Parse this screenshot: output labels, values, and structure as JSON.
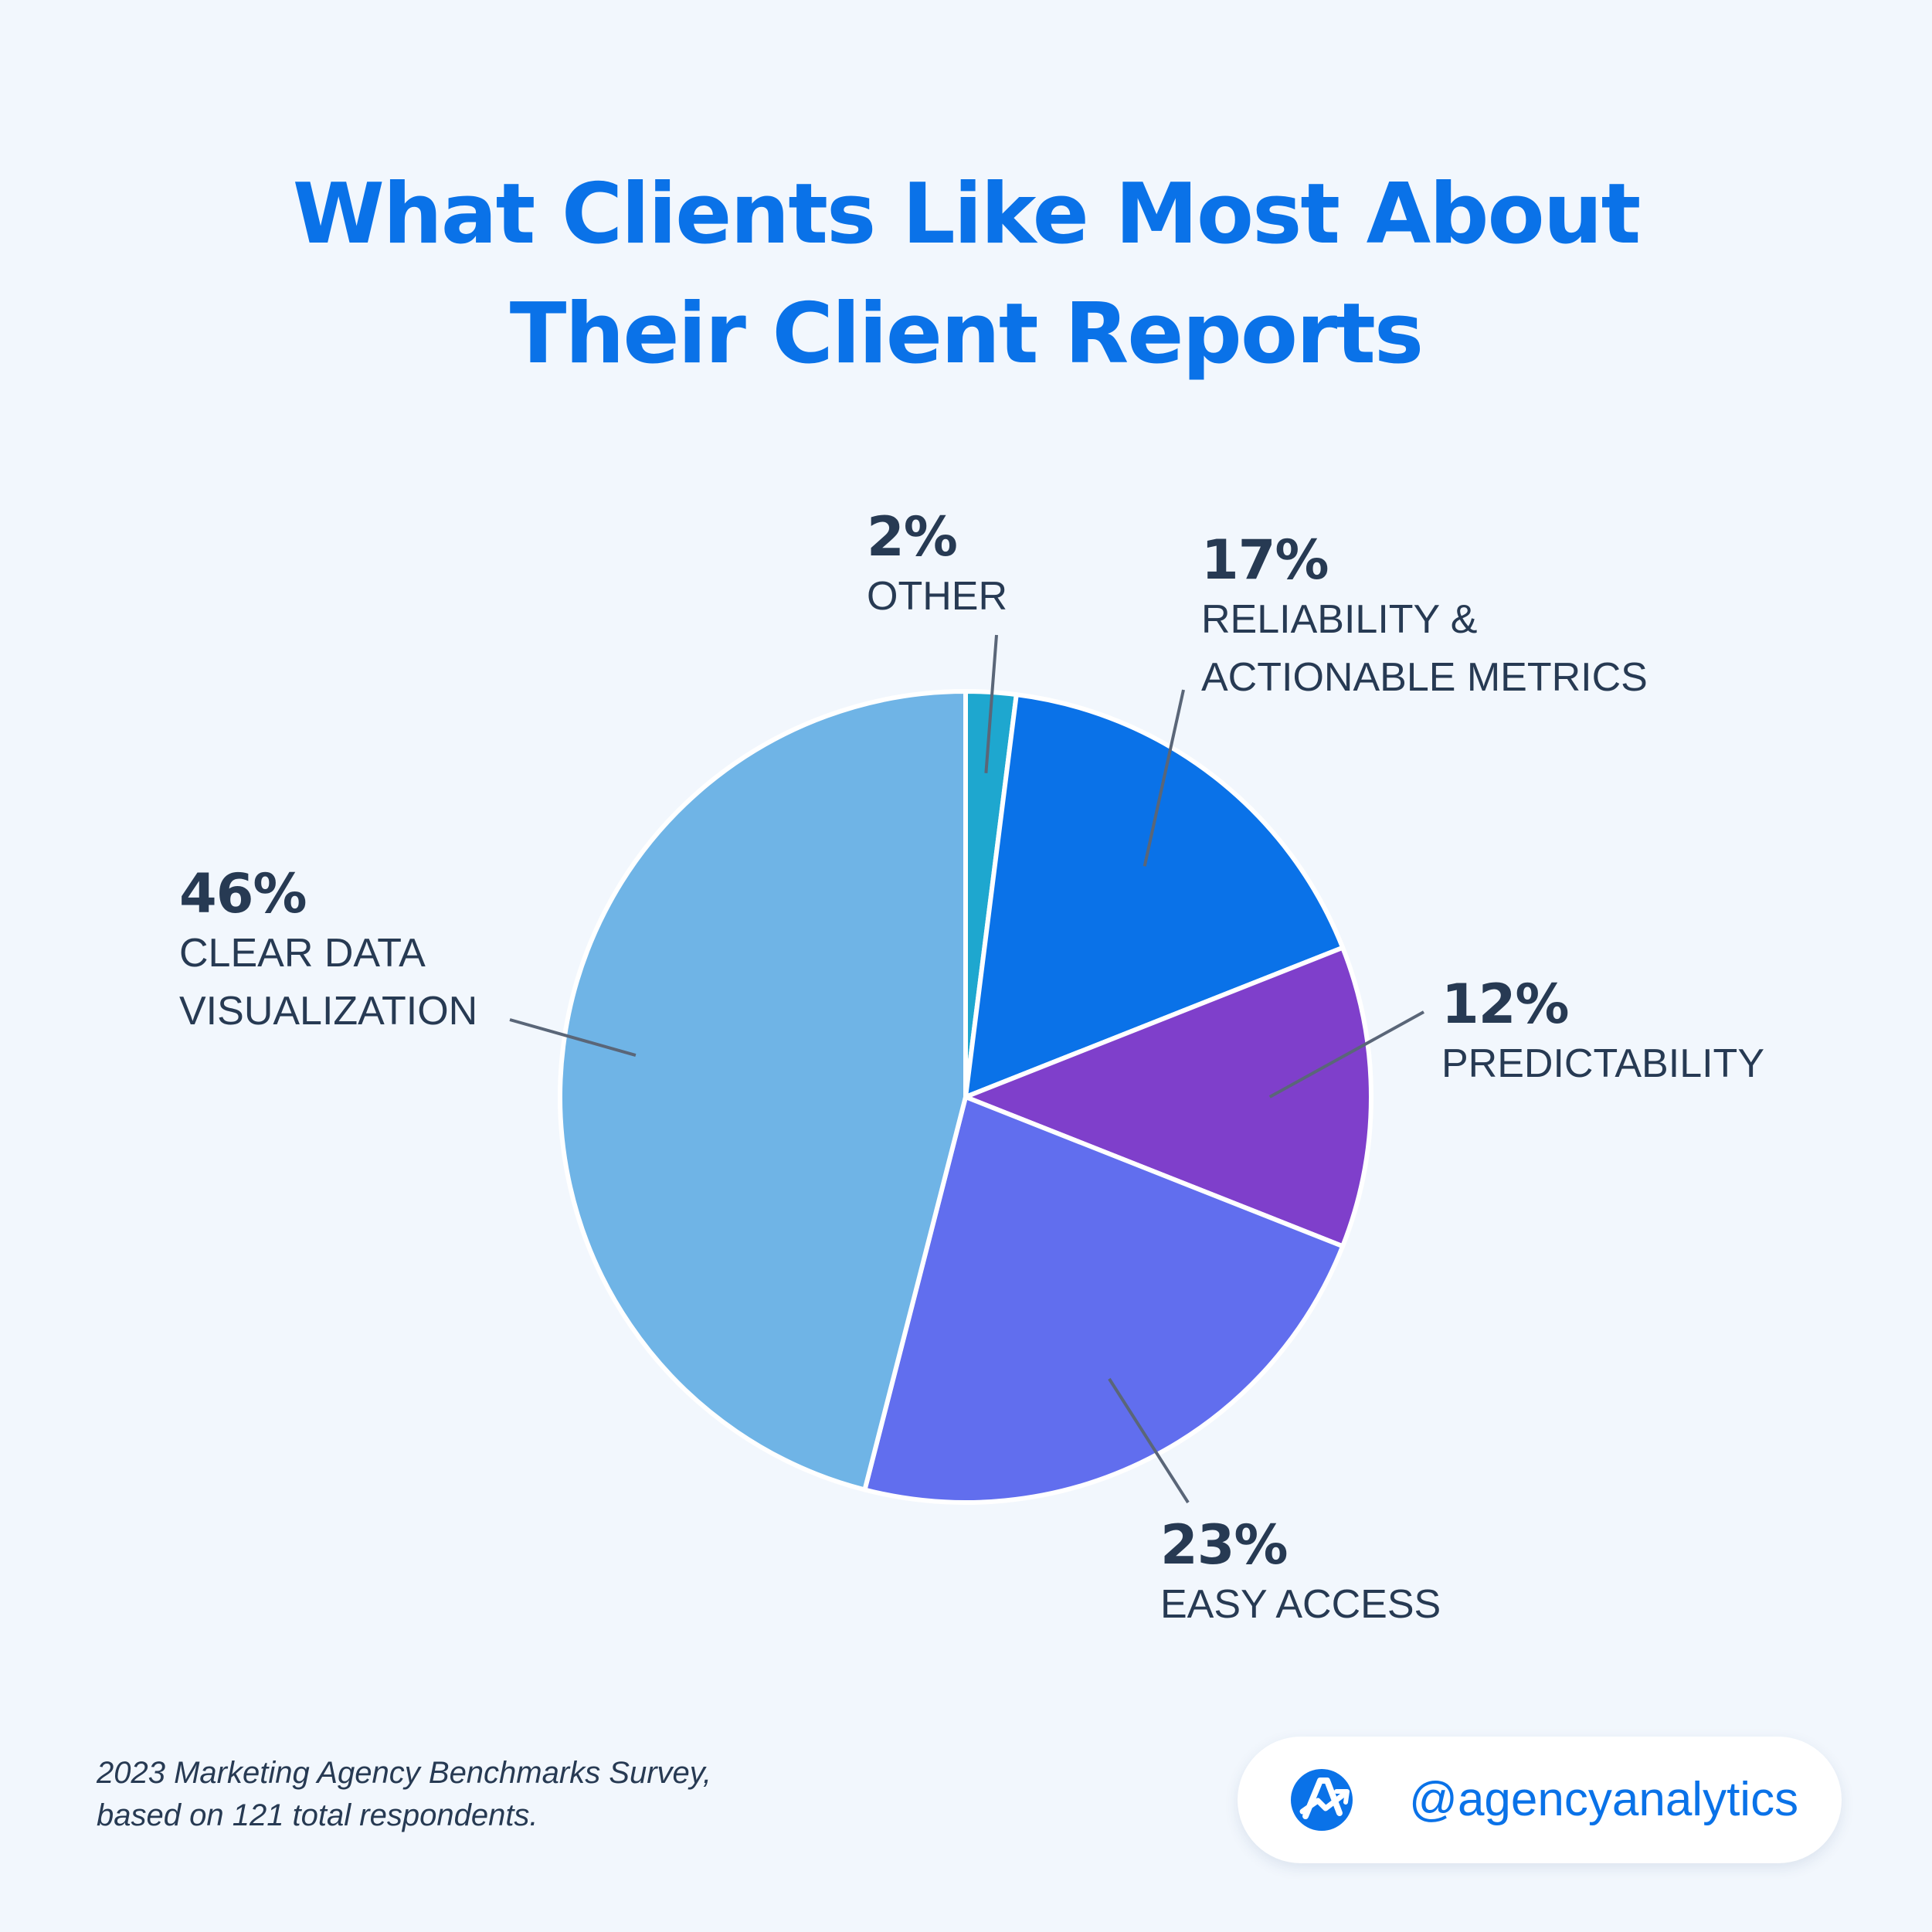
{
  "header": {
    "title_line1": "What Clients Like Most About",
    "title_line2": "Their Client Reports"
  },
  "chart_data": {
    "type": "pie",
    "title": "What Clients Like Most About Their Client Reports",
    "slices": [
      {
        "label": "OTHER",
        "label_lines": [
          "OTHER"
        ],
        "value": 2,
        "value_label": "2%",
        "color": "#1ea7cf"
      },
      {
        "label": "RELIABILITY & ACTIONABLE METRICS",
        "label_lines": [
          "RELIABILITY &",
          "ACTIONABLE METRICS"
        ],
        "value": 17,
        "value_label": "17%",
        "color": "#0a72e8"
      },
      {
        "label": "PREDICTABILITY",
        "label_lines": [
          "PREDICTABILITY"
        ],
        "value": 12,
        "value_label": "12%",
        "color": "#7f3fcb"
      },
      {
        "label": "EASY ACCESS",
        "label_lines": [
          "EASY ACCESS"
        ],
        "value": 23,
        "value_label": "23%",
        "color": "#616eee"
      },
      {
        "label": "CLEAR DATA VISUALIZATION",
        "label_lines": [
          "CLEAR DATA",
          "VISUALIZATION"
        ],
        "value": 46,
        "value_label": "46%",
        "color": "#6fb4e6"
      }
    ],
    "start_angle_deg": 0,
    "direction": "clockwise",
    "slice_border_color": "#ffffff",
    "leader_color": "#5a6678"
  },
  "footer": {
    "source_line1": "2023 Marketing Agency Benchmarks Survey,",
    "source_line2": "based on 121 total respondents.",
    "handle": "@agencyanalytics",
    "logo_icon": "agencyanalytics-logo-icon"
  }
}
